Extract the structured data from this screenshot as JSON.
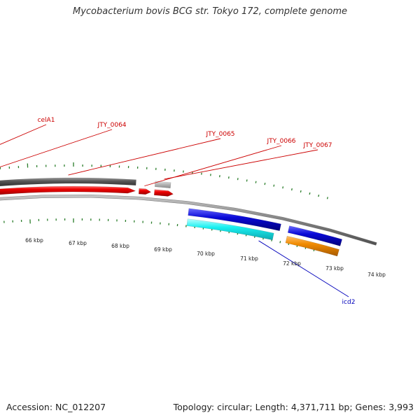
{
  "title": "Mycobacterium bovis BCG str. Tokyo 172, complete genome",
  "footer": {
    "accession": "Accession: NC_012207",
    "summary": "Topology: circular; Length: 4,371,711 bp; Genes: 3,993"
  },
  "colors": {
    "gene_label_forward": "#cc0000",
    "gene_label_reverse": "#0000bb",
    "cds_forward": "#ee0000",
    "gene_teal": "#2cb8c4",
    "gene_cyan": "#19f0f0",
    "gene_darkgray": "#555555",
    "gene_lightgray": "#bbbbbb",
    "gene_blue": "#0a0ad8",
    "gene_orange": "#f08a00",
    "tick_green": "#2a7d2a",
    "backbone": "#808080"
  },
  "gene_labels": [
    {
      "name": "celA1",
      "strand": "forward"
    },
    {
      "name": "JTY_0064",
      "strand": "forward"
    },
    {
      "name": "JTY_0065",
      "strand": "forward"
    },
    {
      "name": "JTY_0066",
      "strand": "forward"
    },
    {
      "name": "JTY_0067",
      "strand": "forward"
    },
    {
      "name": "icd2",
      "strand": "reverse"
    }
  ],
  "scale_labels": [
    "66 kbp",
    "67 kbp",
    "68 kbp",
    "69 kbp",
    "70 kbp",
    "71 kbp",
    "72 kbp",
    "73 kbp",
    "74 kbp"
  ]
}
